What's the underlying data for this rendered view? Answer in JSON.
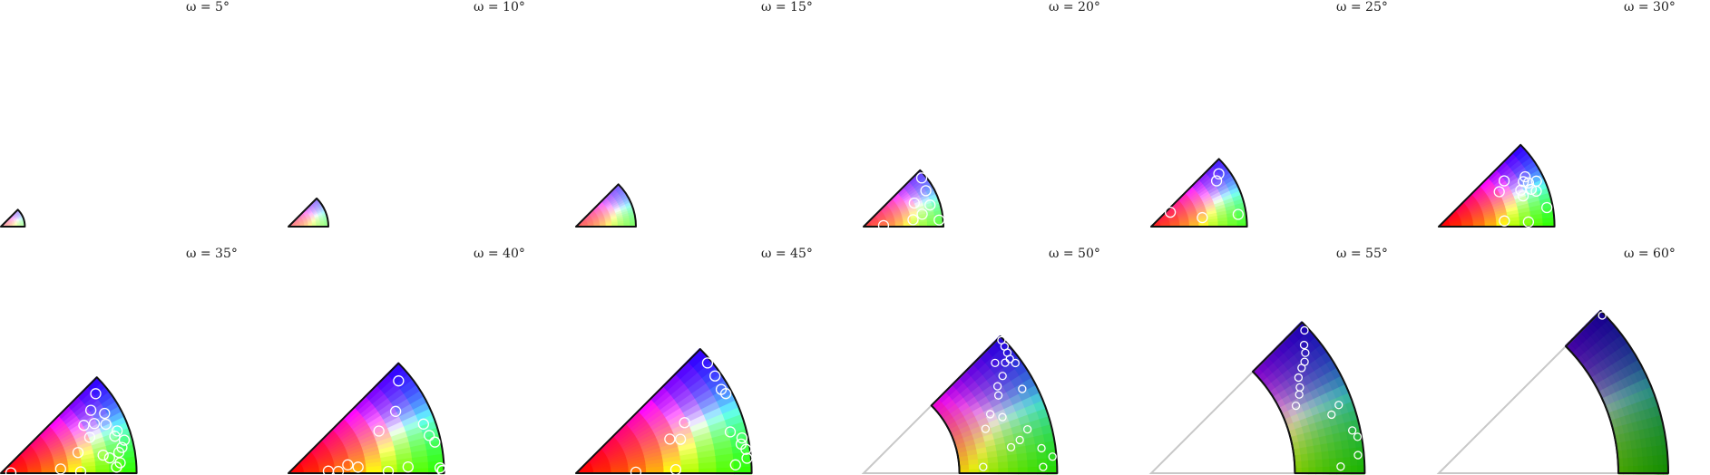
{
  "figure": {
    "background": "#ffffff",
    "outline_color": "#111111",
    "empty_outline_color": "#c8c8c8",
    "marker_color": "#ffffff"
  },
  "chart_data": [
    {
      "title": "ω = 5°",
      "type": "scatter",
      "omega": 5,
      "r_inner": 0,
      "r_outer": 0.12,
      "points": []
    },
    {
      "title": "ω = 10°",
      "type": "scatter",
      "omega": 10,
      "r_inner": 0,
      "r_outer": 0.2,
      "points": []
    },
    {
      "title": "ω = 15°",
      "type": "scatter",
      "omega": 15,
      "r_inner": 0,
      "r_outer": 0.3,
      "points": []
    },
    {
      "title": "ω = 20°",
      "type": "scatter",
      "omega": 20,
      "r_inner": 0,
      "r_outer": 0.4,
      "points": [
        [
          25,
          0.28
        ],
        [
          12,
          0.3
        ],
        [
          8,
          0.25
        ],
        [
          30,
          0.36
        ],
        [
          40,
          0.38
        ],
        [
          5,
          0.38
        ],
        [
          18,
          0.35
        ],
        [
          3,
          0.1
        ]
      ]
    },
    {
      "title": "ω = 25°",
      "type": "scatter",
      "omega": 25,
      "r_inner": 0,
      "r_outer": 0.48,
      "points": [
        [
          35,
          0.4
        ],
        [
          8,
          0.44
        ],
        [
          10,
          0.26
        ],
        [
          38,
          0.43
        ],
        [
          37,
          0.12
        ]
      ]
    },
    {
      "title": "ω = 30°",
      "type": "scatter",
      "omega": 30,
      "r_inner": 0,
      "r_outer": 0.58,
      "points": [
        [
          35,
          0.4
        ],
        [
          20,
          0.45
        ],
        [
          26,
          0.5
        ],
        [
          24,
          0.45
        ],
        [
          30,
          0.35
        ],
        [
          10,
          0.55
        ],
        [
          5,
          0.33
        ],
        [
          28,
          0.48
        ],
        [
          22,
          0.5
        ],
        [
          20,
          0.52
        ],
        [
          3,
          0.45
        ],
        [
          30,
          0.5
        ],
        [
          25,
          0.54
        ]
      ]
    },
    {
      "title": "ω = 35°",
      "type": "scatter",
      "omega": 35,
      "r_inner": 0,
      "r_outer": 0.68,
      "points": [
        [
          35,
          0.55
        ],
        [
          30,
          0.6
        ],
        [
          25,
          0.58
        ],
        [
          18,
          0.6
        ],
        [
          12,
          0.62
        ],
        [
          10,
          0.6
        ],
        [
          8,
          0.55
        ],
        [
          5,
          0.6
        ],
        [
          20,
          0.62
        ],
        [
          15,
          0.64
        ],
        [
          22,
          0.48
        ],
        [
          15,
          0.4
        ],
        [
          10,
          0.52
        ],
        [
          30,
          0.48
        ],
        [
          28,
          0.53
        ],
        [
          4,
          0.3
        ],
        [
          2,
          0.05
        ],
        [
          1,
          0.4
        ],
        [
          40,
          0.62
        ],
        [
          3,
          0.58
        ]
      ]
    },
    {
      "title": "ω = 40°",
      "type": "scatter",
      "omega": 40,
      "r_inner": 0,
      "r_outer": 0.78,
      "points": [
        [
          40,
          0.72
        ],
        [
          30,
          0.62
        ],
        [
          25,
          0.5
        ],
        [
          20,
          0.72
        ],
        [
          15,
          0.73
        ],
        [
          12,
          0.75
        ],
        [
          8,
          0.3
        ],
        [
          5,
          0.35
        ],
        [
          3,
          0.2
        ],
        [
          2,
          0.25
        ],
        [
          1,
          0.5
        ],
        [
          3,
          0.6
        ],
        [
          0,
          0.78
        ],
        [
          1,
          0.77
        ],
        [
          2,
          0.76
        ]
      ]
    },
    {
      "title": "ω = 45°",
      "type": "scatter",
      "omega": 45,
      "r_inner": 0,
      "r_outer": 0.88,
      "points": [
        [
          40,
          0.86
        ],
        [
          35,
          0.85
        ],
        [
          30,
          0.84
        ],
        [
          28,
          0.85
        ],
        [
          25,
          0.6
        ],
        [
          20,
          0.5
        ],
        [
          18,
          0.55
        ],
        [
          15,
          0.8
        ],
        [
          12,
          0.85
        ],
        [
          10,
          0.84
        ],
        [
          8,
          0.86
        ],
        [
          5,
          0.86
        ],
        [
          2,
          0.5
        ],
        [
          1,
          0.3
        ],
        [
          3,
          0.8
        ]
      ]
    },
    {
      "title": "ω = 50°",
      "type": "scatter",
      "omega": 50,
      "r_inner": 0.48,
      "r_outer": 0.97,
      "points": [
        [
          44,
          0.96
        ],
        [
          42,
          0.95
        ],
        [
          40,
          0.94
        ],
        [
          38,
          0.93
        ],
        [
          36,
          0.94
        ],
        [
          35,
          0.85
        ],
        [
          33,
          0.8
        ],
        [
          30,
          0.78
        ],
        [
          28,
          0.9
        ],
        [
          25,
          0.7
        ],
        [
          22,
          0.75
        ],
        [
          20,
          0.65
        ],
        [
          15,
          0.85
        ],
        [
          12,
          0.8
        ],
        [
          10,
          0.75
        ],
        [
          8,
          0.9
        ],
        [
          5,
          0.95
        ],
        [
          3,
          0.6
        ],
        [
          2,
          0.9
        ],
        [
          40,
          0.86
        ],
        [
          38,
          0.9
        ]
      ]
    },
    {
      "title": "ω = 55°",
      "type": "scatter",
      "omega": 55,
      "r_inner": 0.72,
      "r_outer": 1.07,
      "points": [
        [
          43,
          1.05
        ],
        [
          40,
          1.0
        ],
        [
          38,
          0.98
        ],
        [
          36,
          0.95
        ],
        [
          35,
          0.92
        ],
        [
          33,
          0.88
        ],
        [
          30,
          0.86
        ],
        [
          28,
          0.84
        ],
        [
          25,
          0.8
        ],
        [
          20,
          1.0
        ],
        [
          18,
          0.95
        ],
        [
          12,
          1.03
        ],
        [
          10,
          1.05
        ],
        [
          5,
          1.04
        ],
        [
          2,
          0.95
        ]
      ]
    },
    {
      "title": "ω = 60°",
      "type": "scatter",
      "omega": 60,
      "r_inner": 0.9,
      "r_outer": 1.15,
      "points": [
        [
          44,
          1.14
        ]
      ]
    }
  ]
}
